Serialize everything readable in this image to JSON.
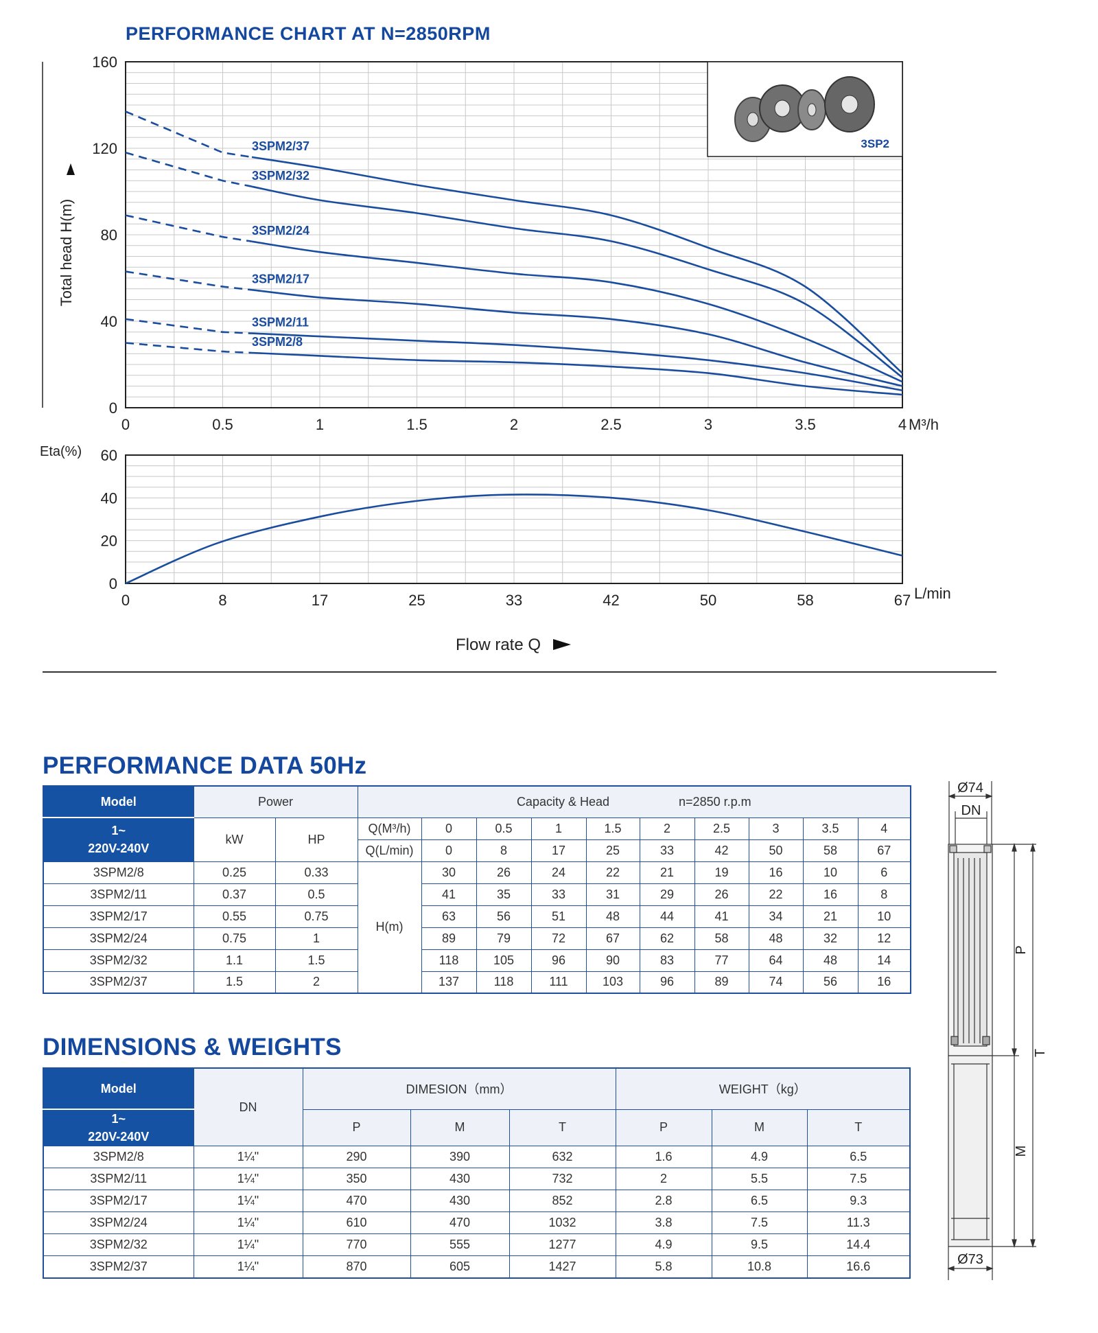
{
  "chart_title": "PERFORMANCE CHART AT N=2850RPM",
  "inset_label": "3SP2",
  "chart_data": [
    {
      "type": "line",
      "ylabel": "Total head H(m)",
      "x_unit": "M³/h",
      "xlim": [
        0,
        4
      ],
      "ylim": [
        0,
        160
      ],
      "x_ticks": [
        "0",
        "0.5",
        "1",
        "1.5",
        "2",
        "2.5",
        "3",
        "3.5",
        "4"
      ],
      "y_ticks": [
        "0",
        "40",
        "80",
        "120",
        "160"
      ],
      "x": [
        0,
        0.5,
        1,
        1.5,
        2,
        2.5,
        3,
        3.5,
        4
      ],
      "grid": true,
      "series": [
        {
          "name": "3SPM2/37",
          "values": [
            137,
            118,
            111,
            103,
            96,
            89,
            74,
            56,
            16
          ]
        },
        {
          "name": "3SPM2/32",
          "values": [
            118,
            105,
            96,
            90,
            83,
            77,
            64,
            48,
            14
          ]
        },
        {
          "name": "3SPM2/24",
          "values": [
            89,
            79,
            72,
            67,
            62,
            58,
            48,
            32,
            12
          ]
        },
        {
          "name": "3SPM2/17",
          "values": [
            63,
            56,
            51,
            48,
            44,
            41,
            34,
            21,
            10
          ]
        },
        {
          "name": "3SPM2/11",
          "values": [
            41,
            35,
            33,
            31,
            29,
            26,
            22,
            16,
            8
          ]
        },
        {
          "name": "3SPM2/8",
          "values": [
            30,
            26,
            24,
            22,
            21,
            19,
            16,
            10,
            6
          ]
        }
      ],
      "dashed_below_x": 0.65
    },
    {
      "type": "line",
      "ylabel": "Eta(%)",
      "xlabel": "Flow rate Q",
      "x_unit": "L/min",
      "xlim": [
        0,
        67
      ],
      "ylim": [
        0,
        60
      ],
      "x_ticks": [
        "0",
        "8",
        "17",
        "25",
        "33",
        "42",
        "50",
        "58",
        "67"
      ],
      "y_ticks": [
        "0",
        "20",
        "40",
        "60"
      ],
      "grid": true,
      "series": [
        {
          "x": [
            0,
            8,
            17,
            25,
            33,
            42,
            50,
            58,
            67
          ],
          "values": [
            0,
            19,
            31.5,
            38.5,
            41.5,
            40,
            34.5,
            25,
            13
          ]
        }
      ]
    }
  ],
  "perf_section_title": "PERFORMANCE DATA 50Hz",
  "perf_table": {
    "model_header": "Model",
    "phase_line1": "1~",
    "phase_line2": "220V-240V",
    "power_header": "Power",
    "kw_header": "kW",
    "hp_header": "HP",
    "cap_header": "Capacity & Head",
    "speed": "n=2850 r.p.m",
    "q_m3h_label": "Q(M³/h)",
    "q_lmin_label": "Q(L/min)",
    "q_m3h": [
      "0",
      "0.5",
      "1",
      "1.5",
      "2",
      "2.5",
      "3",
      "3.5",
      "4"
    ],
    "q_lmin": [
      "0",
      "8",
      "17",
      "25",
      "33",
      "42",
      "50",
      "58",
      "67"
    ],
    "head_label": "H(m)",
    "rows": [
      {
        "model": "3SPM2/8",
        "kw": "0.25",
        "hp": "0.33",
        "h": [
          "30",
          "26",
          "24",
          "22",
          "21",
          "19",
          "16",
          "10",
          "6"
        ]
      },
      {
        "model": "3SPM2/11",
        "kw": "0.37",
        "hp": "0.5",
        "h": [
          "41",
          "35",
          "33",
          "31",
          "29",
          "26",
          "22",
          "16",
          "8"
        ]
      },
      {
        "model": "3SPM2/17",
        "kw": "0.55",
        "hp": "0.75",
        "h": [
          "63",
          "56",
          "51",
          "48",
          "44",
          "41",
          "34",
          "21",
          "10"
        ]
      },
      {
        "model": "3SPM2/24",
        "kw": "0.75",
        "hp": "1",
        "h": [
          "89",
          "79",
          "72",
          "67",
          "62",
          "58",
          "48",
          "32",
          "12"
        ]
      },
      {
        "model": "3SPM2/32",
        "kw": "1.1",
        "hp": "1.5",
        "h": [
          "118",
          "105",
          "96",
          "90",
          "83",
          "77",
          "64",
          "48",
          "14"
        ]
      },
      {
        "model": "3SPM2/37",
        "kw": "1.5",
        "hp": "2",
        "h": [
          "137",
          "118",
          "111",
          "103",
          "96",
          "89",
          "74",
          "56",
          "16"
        ]
      }
    ]
  },
  "dim_section_title": "DIMENSIONS & WEIGHTS",
  "dim_table": {
    "model_header": "Model",
    "phase_line1": "1~",
    "phase_line2": "220V-240V",
    "dn_header": "DN",
    "dim_header": "DIMESION（mm）",
    "weight_header": "WEIGHT（kg）",
    "sub_headers": [
      "P",
      "M",
      "T",
      "P",
      "M",
      "T"
    ],
    "rows": [
      {
        "model": "3SPM2/8",
        "dn": "1¼\"",
        "vals": [
          "290",
          "390",
          "632",
          "1.6",
          "4.9",
          "6.5"
        ]
      },
      {
        "model": "3SPM2/11",
        "dn": "1¼\"",
        "vals": [
          "350",
          "430",
          "732",
          "2",
          "5.5",
          "7.5"
        ]
      },
      {
        "model": "3SPM2/17",
        "dn": "1¼\"",
        "vals": [
          "470",
          "430",
          "852",
          "2.8",
          "6.5",
          "9.3"
        ]
      },
      {
        "model": "3SPM2/24",
        "dn": "1¼\"",
        "vals": [
          "610",
          "470",
          "1032",
          "3.8",
          "7.5",
          "11.3"
        ]
      },
      {
        "model": "3SPM2/32",
        "dn": "1¼\"",
        "vals": [
          "770",
          "555",
          "1277",
          "4.9",
          "9.5",
          "14.4"
        ]
      },
      {
        "model": "3SPM2/37",
        "dn": "1¼\"",
        "vals": [
          "870",
          "605",
          "1427",
          "5.8",
          "10.8",
          "16.6"
        ]
      }
    ]
  },
  "drawing": {
    "top_diameter": "Ø74",
    "dn_label": "DN",
    "p_label": "P",
    "t_label": "T",
    "m_label": "M",
    "bottom_diameter": "Ø73"
  },
  "colors": {
    "curve": "#1a4d9e",
    "header_bg": "#1552a3",
    "title": "#14479e",
    "grid": "#c8c8c8"
  }
}
